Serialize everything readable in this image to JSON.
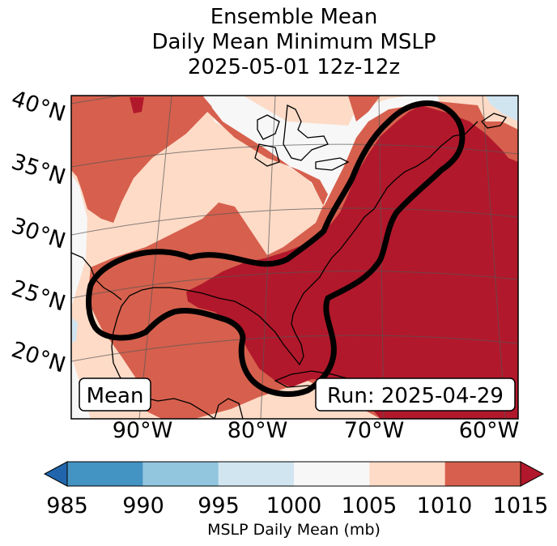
{
  "title": {
    "line1": "Ensemble Mean",
    "line2": "Daily Mean Minimum MSLP",
    "line3": "2025-05-01 12z-12z"
  },
  "map": {
    "lat_labels": [
      "40°N",
      "35°N",
      "30°N",
      "25°N",
      "20°N"
    ],
    "lon_labels": [
      "90°W",
      "80°W",
      "70°W",
      "60°W"
    ],
    "box_left": "Mean",
    "box_right": "Run: 2025-04-29"
  },
  "colorbar": {
    "ticks": [
      "985",
      "990",
      "995",
      "1000",
      "1005",
      "1010",
      "1015"
    ],
    "label": "MSLP Daily Mean (mb)",
    "colors": [
      "#2166ac",
      "#4393c3",
      "#92c5de",
      "#d1e5f0",
      "#f7f7f7",
      "#fddbc7",
      "#d6604d",
      "#b2182b"
    ]
  },
  "colors": {
    "c1000_1005": "#f7f7f7",
    "c1005_1010": "#fddbc7",
    "c1010_1015": "#d6604d",
    "c1015": "#b2182b",
    "c995_1000": "#d1e5f0"
  }
}
